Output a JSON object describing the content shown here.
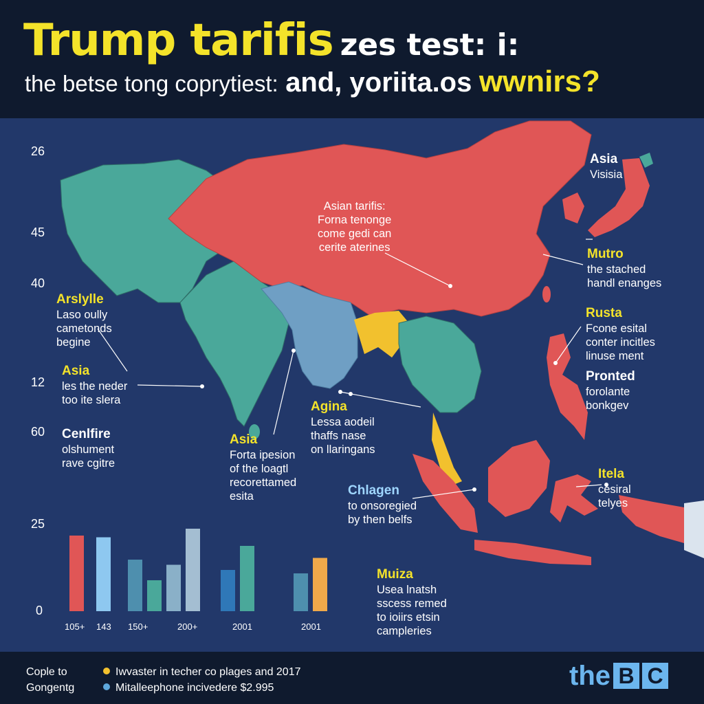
{
  "header": {
    "title_main": "Trump tarifis",
    "title_rest": "zes test: i:",
    "subtitle_part1": "the betse tong coprytiest:",
    "subtitle_part2": "and, yoriita.os",
    "subtitle_part3": "wwnirs?"
  },
  "map": {
    "y_labels": [
      "26",
      "45",
      "40",
      "12",
      "60",
      "25",
      "0"
    ],
    "callouts": [
      {
        "head": "Asia",
        "lines": [
          "Visisia"
        ]
      },
      {
        "head": "Asian tarifis:",
        "lines": [
          "Forna tenonge",
          "come gedi can",
          "cerite aterines"
        ]
      },
      {
        "head": "Mutro",
        "lines": [
          "the stached",
          "handl enanges"
        ]
      },
      {
        "head": "Arslylle",
        "lines": [
          "Laso oully",
          "cametonds",
          "begine"
        ]
      },
      {
        "head": "Rusta",
        "lines": [
          "Fcone esital",
          "conter incitles",
          "linuse ment"
        ]
      },
      {
        "head": "Asia",
        "lines": [
          "les the neder",
          "too ite slera"
        ]
      },
      {
        "head": "Pronted",
        "lines": [
          "forolante",
          "bonkgev"
        ]
      },
      {
        "head": "Agina",
        "lines": [
          "Lessa aodeil",
          "thaffs nase",
          "on llaringans"
        ]
      },
      {
        "head": "Cenlfire",
        "lines": [
          "olshument",
          "rave cgitre"
        ]
      },
      {
        "head": "Asia",
        "lines": [
          "Forta ipesion",
          "of the loagtl",
          "recorettamed",
          "esita"
        ]
      },
      {
        "head": "Itela",
        "lines": [
          "cesiral",
          "telyes"
        ]
      },
      {
        "head": "Chlagen",
        "lines": [
          "to onsoregied",
          "by then belfs"
        ]
      },
      {
        "head": "Muiza",
        "lines": [
          "Usea lnatsh",
          "sscess remed",
          "to ioiirs etsin",
          "campleries"
        ]
      }
    ]
  },
  "chart_data": {
    "type": "bar",
    "categories": [
      "105+",
      "143",
      "150+",
      "200+",
      "2001",
      "2001"
    ],
    "y_ticks": [
      "25",
      "0"
    ],
    "bars": [
      {
        "value": 22,
        "color": "#e05656"
      },
      {
        "value": 21.5,
        "color": "#8ec8f0"
      },
      {
        "value": 15,
        "color": "#4e8fae"
      },
      {
        "value": 9,
        "color": "#4aa89a"
      },
      {
        "value": 13.5,
        "color": "#8ab0c8"
      },
      {
        "value": 24,
        "color": "#a4bed2"
      },
      {
        "value": 12,
        "color": "#2f78b8"
      },
      {
        "value": 19,
        "color": "#4aa89a"
      },
      {
        "value": 11,
        "color": "#4e8fae"
      },
      {
        "value": 15.5,
        "color": "#f0a94a"
      }
    ]
  },
  "footer": {
    "left_line1": "Cople to",
    "left_line2": "Gongentg",
    "legend": [
      {
        "label": "Iwvaster in techer co plages and 2017",
        "color": "#f2c12e"
      },
      {
        "label": "Mitalleephone incivedere $2.995",
        "color": "#5ea7dc"
      }
    ],
    "brand_word": "the",
    "brand_b": "B",
    "brand_c": "C"
  },
  "colors": {
    "ocean": "#22386a",
    "red": "#e05656",
    "teal": "#4aa89a",
    "blue": "#6f9fc4",
    "yellow": "#f2c12e",
    "accent_yellow": "#f4e32a"
  }
}
